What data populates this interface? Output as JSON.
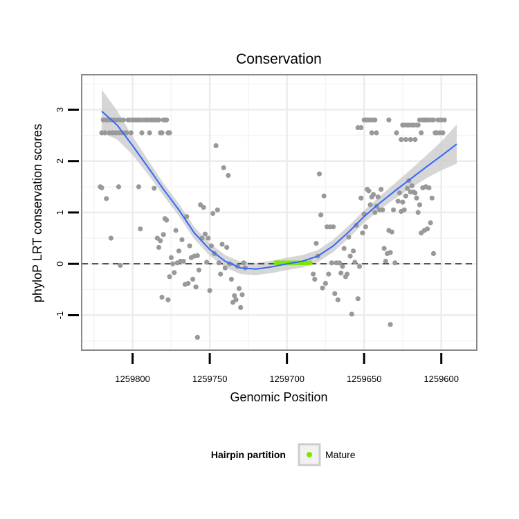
{
  "chart_data": {
    "type": "scatter",
    "title": "Conservation",
    "xlabel": "Genomic Position",
    "ylabel": "phyloP LRT conservation scores",
    "x_reversed": true,
    "xlim": [
      1259833,
      1259577
    ],
    "ylim": [
      -1.68,
      3.68
    ],
    "x_ticks": [
      1259800,
      1259750,
      1259700,
      1259650,
      1259600
    ],
    "x_tick_labels": [
      "1259800",
      "1259750",
      "1259700",
      "1259650",
      "1259600"
    ],
    "y_ticks": [
      -1,
      0,
      1,
      2,
      3
    ],
    "y_tick_labels": [
      "-1",
      "0",
      "1",
      "2",
      "3"
    ],
    "grid": true,
    "reference_line": {
      "y": 0,
      "style": "dashed"
    },
    "legend": {
      "title": "Hairpin partition",
      "position": "bottom",
      "entries": [
        {
          "label": "Mature",
          "color": "#7ce800"
        }
      ]
    },
    "colors": {
      "points": "#999999",
      "smooth": "#3366ff",
      "ribbon": "#cccccc",
      "mature": "#7ce800",
      "panel_border": "#888888"
    },
    "series": [
      {
        "name": "Mature",
        "color": "#7ce800",
        "points": [
          [
            1259707,
            0.02
          ],
          [
            1259705,
            0.02
          ],
          [
            1259703,
            0.02
          ],
          [
            1259701,
            0.02
          ],
          [
            1259699,
            0.02
          ],
          [
            1259697,
            0.02
          ],
          [
            1259695,
            0.02
          ],
          [
            1259693,
            0.02
          ],
          [
            1259691,
            0.02
          ],
          [
            1259689,
            0.02
          ],
          [
            1259687,
            0.02
          ],
          [
            1259685,
            0.02
          ]
        ]
      }
    ],
    "points": [
      [
        1259820,
        2.55
      ],
      [
        1259819,
        2.8
      ],
      [
        1259818,
        2.55
      ],
      [
        1259817,
        2.8
      ],
      [
        1259816,
        2.8
      ],
      [
        1259815,
        2.55
      ],
      [
        1259814,
        2.8
      ],
      [
        1259813,
        2.55
      ],
      [
        1259812,
        2.8
      ],
      [
        1259811,
        2.55
      ],
      [
        1259810,
        2.8
      ],
      [
        1259809,
        2.55
      ],
      [
        1259808,
        2.8
      ],
      [
        1259807,
        2.55
      ],
      [
        1259806,
        2.8
      ],
      [
        1259805,
        2.55
      ],
      [
        1259804,
        2.55
      ],
      [
        1259803,
        2.8
      ],
      [
        1259802,
        2.8
      ],
      [
        1259801,
        2.55
      ],
      [
        1259800,
        2.8
      ],
      [
        1259799,
        2.8
      ],
      [
        1259798,
        2.8
      ],
      [
        1259797,
        2.8
      ],
      [
        1259796,
        2.8
      ],
      [
        1259795,
        2.8
      ],
      [
        1259794,
        2.55
      ],
      [
        1259793,
        2.8
      ],
      [
        1259792,
        2.8
      ],
      [
        1259791,
        2.8
      ],
      [
        1259790,
        2.8
      ],
      [
        1259789,
        2.55
      ],
      [
        1259788,
        2.8
      ],
      [
        1259787,
        2.8
      ],
      [
        1259786,
        2.8
      ],
      [
        1259785,
        2.8
      ],
      [
        1259784,
        2.8
      ],
      [
        1259783,
        2.8
      ],
      [
        1259782,
        2.55
      ],
      [
        1259781,
        2.55
      ],
      [
        1259780,
        2.8
      ],
      [
        1259779,
        2.8
      ],
      [
        1259778,
        2.8
      ],
      [
        1259777,
        2.55
      ],
      [
        1259776,
        2.55
      ],
      [
        1259821,
        1.5
      ],
      [
        1259820,
        1.48
      ],
      [
        1259817,
        1.27
      ],
      [
        1259814,
        0.5
      ],
      [
        1259809,
        1.5
      ],
      [
        1259808,
        -0.03
      ],
      [
        1259796,
        1.5
      ],
      [
        1259795,
        0.68
      ],
      [
        1259786,
        1.47
      ],
      [
        1259784,
        0.5
      ],
      [
        1259783,
        0.32
      ],
      [
        1259782,
        0.45
      ],
      [
        1259781,
        -0.65
      ],
      [
        1259780,
        0.57
      ],
      [
        1259779,
        0.88
      ],
      [
        1259778,
        0.85
      ],
      [
        1259777,
        -0.7
      ],
      [
        1259776,
        -0.25
      ],
      [
        1259775,
        0.12
      ],
      [
        1259774,
        0.0
      ],
      [
        1259773,
        -0.17
      ],
      [
        1259772,
        0.65
      ],
      [
        1259771,
        0.02
      ],
      [
        1259770,
        0.25
      ],
      [
        1259769,
        0.05
      ],
      [
        1259768,
        0.47
      ],
      [
        1259767,
        0.05
      ],
      [
        1259766,
        -0.4
      ],
      [
        1259765,
        0.92
      ],
      [
        1259764,
        -0.38
      ],
      [
        1259763,
        0.35
      ],
      [
        1259762,
        0.12
      ],
      [
        1259761,
        -0.3
      ],
      [
        1259760,
        0.15
      ],
      [
        1259759,
        -0.45
      ],
      [
        1259758,
        0.16
      ],
      [
        1259757,
        -0.12
      ],
      [
        1259756,
        1.15
      ],
      [
        1259755,
        0.5
      ],
      [
        1259754,
        1.1
      ],
      [
        1259753,
        0.58
      ],
      [
        1259752,
        0.03
      ],
      [
        1259751,
        0.5
      ],
      [
        1259750,
        -0.52
      ],
      [
        1259749,
        0.35
      ],
      [
        1259748,
        0.98
      ],
      [
        1259747,
        0.2
      ],
      [
        1259746,
        2.3
      ],
      [
        1259745,
        1.05
      ],
      [
        1259744,
        0.02
      ],
      [
        1259743,
        -0.2
      ],
      [
        1259742,
        0.38
      ],
      [
        1259741,
        1.87
      ],
      [
        1259740,
        -0.08
      ],
      [
        1259739,
        0.32
      ],
      [
        1259738,
        1.72
      ],
      [
        1259737,
        0.0
      ],
      [
        1259736,
        -0.3
      ],
      [
        1259735,
        -0.75
      ],
      [
        1259734,
        -0.62
      ],
      [
        1259733,
        -0.7
      ],
      [
        1259732,
        -0.05
      ],
      [
        1259731,
        -0.48
      ],
      [
        1259730,
        -0.85
      ],
      [
        1259729,
        -0.6
      ],
      [
        1259728,
        0.02
      ],
      [
        1259727,
        -0.08
      ],
      [
        1259758,
        -1.43
      ],
      [
        1259683,
        -0.2
      ],
      [
        1259682,
        -0.3
      ],
      [
        1259681,
        0.4
      ],
      [
        1259680,
        0.15
      ],
      [
        1259679,
        1.75
      ],
      [
        1259678,
        0.95
      ],
      [
        1259677,
        -0.47
      ],
      [
        1259676,
        1.32
      ],
      [
        1259675,
        -0.38
      ],
      [
        1259674,
        0.72
      ],
      [
        1259673,
        -0.2
      ],
      [
        1259672,
        0.72
      ],
      [
        1259671,
        0.02
      ],
      [
        1259670,
        0.72
      ],
      [
        1259669,
        -0.58
      ],
      [
        1259668,
        0.02
      ],
      [
        1259667,
        -0.7
      ],
      [
        1259666,
        0.02
      ],
      [
        1259665,
        -0.18
      ],
      [
        1259664,
        -0.05
      ],
      [
        1259663,
        0.3
      ],
      [
        1259662,
        -0.25
      ],
      [
        1259661,
        -0.2
      ],
      [
        1259660,
        0.52
      ],
      [
        1259659,
        0.15
      ],
      [
        1259658,
        -0.98
      ],
      [
        1259657,
        0.25
      ],
      [
        1259656,
        0.03
      ],
      [
        1259655,
        0.75
      ],
      [
        1259654,
        -0.68
      ],
      [
        1259653,
        -0.05
      ],
      [
        1259652,
        1.28
      ],
      [
        1259651,
        0.6
      ],
      [
        1259650,
        0.97
      ],
      [
        1259649,
        0.72
      ],
      [
        1259648,
        1.45
      ],
      [
        1259647,
        1.42
      ],
      [
        1259646,
        1.15
      ],
      [
        1259645,
        1.3
      ],
      [
        1259644,
        1.35
      ],
      [
        1259643,
        1.0
      ],
      [
        1259642,
        1.12
      ],
      [
        1259641,
        1.3
      ],
      [
        1259640,
        1.05
      ],
      [
        1259639,
        1.45
      ],
      [
        1259638,
        1.05
      ],
      [
        1259637,
        0.3
      ],
      [
        1259636,
        0.05
      ],
      [
        1259635,
        0.2
      ],
      [
        1259634,
        0.65
      ],
      [
        1259633,
        0.22
      ],
      [
        1259632,
        0.62
      ],
      [
        1259631,
        1.05
      ],
      [
        1259630,
        0.02
      ],
      [
        1259628,
        1.22
      ],
      [
        1259627,
        1.38
      ],
      [
        1259626,
        1.02
      ],
      [
        1259625,
        1.2
      ],
      [
        1259624,
        1.05
      ],
      [
        1259623,
        1.32
      ],
      [
        1259622,
        1.47
      ],
      [
        1259621,
        1.62
      ],
      [
        1259620,
        1.4
      ],
      [
        1259619,
        1.52
      ],
      [
        1259618,
        1.4
      ],
      [
        1259617,
        1.38
      ],
      [
        1259616,
        1.28
      ],
      [
        1259615,
        1.0
      ],
      [
        1259614,
        1.15
      ],
      [
        1259613,
        0.6
      ],
      [
        1259612,
        1.48
      ],
      [
        1259611,
        0.65
      ],
      [
        1259610,
        1.5
      ],
      [
        1259609,
        0.68
      ],
      [
        1259608,
        1.48
      ],
      [
        1259607,
        0.8
      ],
      [
        1259606,
        1.28
      ],
      [
        1259605,
        0.2
      ],
      [
        1259633,
        -1.18
      ],
      [
        1259654,
        2.65
      ],
      [
        1259652,
        2.65
      ],
      [
        1259650,
        2.8
      ],
      [
        1259649,
        2.8
      ],
      [
        1259648,
        2.8
      ],
      [
        1259647,
        2.8
      ],
      [
        1259646,
        2.8
      ],
      [
        1259645,
        2.55
      ],
      [
        1259644,
        2.8
      ],
      [
        1259643,
        2.8
      ],
      [
        1259642,
        2.55
      ],
      [
        1259634,
        2.8
      ],
      [
        1259629,
        2.55
      ],
      [
        1259626,
        2.42
      ],
      [
        1259625,
        2.7
      ],
      [
        1259624,
        2.7
      ],
      [
        1259623,
        2.42
      ],
      [
        1259622,
        2.7
      ],
      [
        1259621,
        2.7
      ],
      [
        1259620,
        2.42
      ],
      [
        1259619,
        2.7
      ],
      [
        1259618,
        2.7
      ],
      [
        1259617,
        2.42
      ],
      [
        1259616,
        2.7
      ],
      [
        1259615,
        2.7
      ],
      [
        1259614,
        2.8
      ],
      [
        1259613,
        2.55
      ],
      [
        1259612,
        2.8
      ],
      [
        1259611,
        2.8
      ],
      [
        1259610,
        2.8
      ],
      [
        1259609,
        2.8
      ],
      [
        1259608,
        2.8
      ],
      [
        1259606,
        2.8
      ],
      [
        1259605,
        2.8
      ],
      [
        1259604,
        2.55
      ],
      [
        1259603,
        2.55
      ],
      [
        1259602,
        2.8
      ],
      [
        1259601,
        2.55
      ],
      [
        1259600,
        2.8
      ],
      [
        1259599,
        2.55
      ],
      [
        1259598,
        2.8
      ]
    ],
    "smooth_line": [
      [
        1259820,
        2.97
      ],
      [
        1259810,
        2.7
      ],
      [
        1259800,
        2.3
      ],
      [
        1259790,
        1.88
      ],
      [
        1259780,
        1.45
      ],
      [
        1259770,
        1.05
      ],
      [
        1259760,
        0.6
      ],
      [
        1259750,
        0.28
      ],
      [
        1259740,
        0.05
      ],
      [
        1259730,
        -0.08
      ],
      [
        1259720,
        -0.1
      ],
      [
        1259710,
        -0.06
      ],
      [
        1259700,
        0.0
      ],
      [
        1259690,
        0.05
      ],
      [
        1259680,
        0.15
      ],
      [
        1259670,
        0.35
      ],
      [
        1259660,
        0.62
      ],
      [
        1259650,
        0.92
      ],
      [
        1259640,
        1.18
      ],
      [
        1259630,
        1.42
      ],
      [
        1259620,
        1.65
      ],
      [
        1259610,
        1.88
      ],
      [
        1259600,
        2.1
      ],
      [
        1259590,
        2.33
      ]
    ],
    "ribbon_half_width": [
      0.42,
      0.28,
      0.18,
      0.14,
      0.12,
      0.12,
      0.12,
      0.12,
      0.12,
      0.12,
      0.12,
      0.12,
      0.12,
      0.12,
      0.12,
      0.12,
      0.12,
      0.12,
      0.13,
      0.15,
      0.18,
      0.22,
      0.28,
      0.38
    ]
  }
}
